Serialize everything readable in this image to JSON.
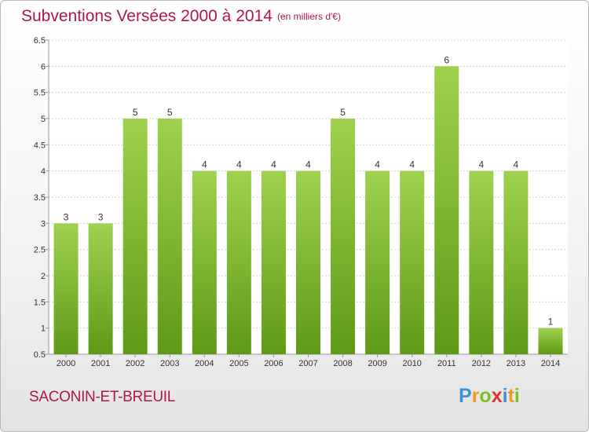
{
  "header": {
    "title": "Subventions Versées 2000 à 2014",
    "unit": "(en milliers d'€)"
  },
  "footer": {
    "commune": "SACONIN-ET-BREUIL",
    "logo": [
      "P",
      "r",
      "o",
      "x",
      "i",
      "t",
      "i"
    ]
  },
  "colors": {
    "title": "#b0154e",
    "bar_top": "#9fd24e",
    "bar_bottom": "#5e9a16",
    "logo": [
      "#3d8fd6",
      "#f29a1d",
      "#7bbf2a",
      "#e2342d",
      "#3d8fd6",
      "#f29a1d",
      "#7bbf2a"
    ]
  },
  "chart_data": {
    "type": "bar",
    "categories": [
      "2000",
      "2001",
      "2002",
      "2003",
      "2004",
      "2005",
      "2006",
      "2007",
      "2008",
      "2009",
      "2010",
      "2011",
      "2012",
      "2013",
      "2014"
    ],
    "values": [
      3,
      3,
      5,
      5,
      4,
      4,
      4,
      4,
      5,
      4,
      4,
      6,
      4,
      4,
      1
    ],
    "ylim": [
      0.5,
      6.5
    ],
    "yticks": [
      "0.5",
      "1",
      "1.5",
      "2",
      "2.5",
      "3",
      "3.5",
      "4",
      "4.5",
      "5",
      "5.5",
      "6",
      "6.5"
    ],
    "grid": true,
    "legend": "none"
  }
}
